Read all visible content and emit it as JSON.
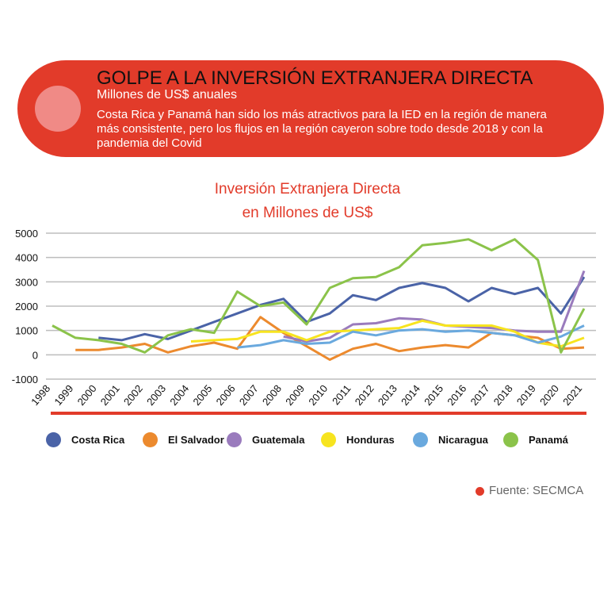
{
  "banner": {
    "title": "GOLPE A LA INVERSIÓN EXTRANJERA DIRECTA",
    "subtitle": "Millones de US$ anuales",
    "description": "Costa Rica y Panamá han sido los más atractivos para la IED en la región de manera más consistente, pero los flujos en la región cayeron sobre todo desde 2018 y con la pandemia del Covid",
    "color": "#e23b2a"
  },
  "chart_data": {
    "type": "line",
    "title_line1": "Inversión Extranjera Directa",
    "title_line2": "en Millones de US$",
    "xlabel": "",
    "ylabel": "",
    "ylim": [
      -1000,
      5000
    ],
    "yticks": [
      "5000",
      "4000",
      "3000",
      "2000",
      "1000",
      "0",
      "-1000"
    ],
    "ytick_values": [
      5000,
      4000,
      3000,
      2000,
      1000,
      0,
      -1000
    ],
    "grid": true,
    "legend_position": "bottom",
    "categories": [
      "1998",
      "1999",
      "2000",
      "2001",
      "2002",
      "2003",
      "2004",
      "2005",
      "2006",
      "2007",
      "2008",
      "2009",
      "2010",
      "2011",
      "2012",
      "2013",
      "2014",
      "2015",
      "2016",
      "2017",
      "2018",
      "2019",
      "2020",
      "2021"
    ],
    "series": [
      {
        "name": "Costa Rica",
        "color": "#4a63a7",
        "values": [
          null,
          null,
          700,
          600,
          850,
          650,
          1000,
          1350,
          1700,
          2050,
          2300,
          1350,
          1700,
          2450,
          2250,
          2750,
          2950,
          2750,
          2200,
          2750,
          2500,
          2750,
          1700,
          3200
        ]
      },
      {
        "name": "El Salvador",
        "color": "#ec8a2e",
        "values": [
          null,
          200,
          200,
          300,
          450,
          100,
          350,
          500,
          250,
          1550,
          900,
          350,
          -200,
          250,
          450,
          150,
          300,
          400,
          300,
          900,
          800,
          700,
          250,
          300
        ]
      },
      {
        "name": "Guatemala",
        "color": "#9a7bbd",
        "values": [
          null,
          null,
          null,
          null,
          null,
          null,
          null,
          null,
          null,
          null,
          750,
          550,
          700,
          1250,
          1300,
          1500,
          1450,
          1200,
          1150,
          1100,
          1000,
          950,
          950,
          3450
        ]
      },
      {
        "name": "Honduras",
        "color": "#f7e41f",
        "values": [
          null,
          null,
          null,
          null,
          null,
          null,
          550,
          600,
          650,
          950,
          950,
          600,
          950,
          1000,
          1050,
          1100,
          1400,
          1200,
          1200,
          1200,
          950,
          500,
          350,
          700
        ]
      },
      {
        "name": "Nicaragua",
        "color": "#6aa9de",
        "values": [
          null,
          null,
          null,
          null,
          null,
          null,
          null,
          null,
          300,
          400,
          600,
          450,
          500,
          950,
          800,
          1000,
          1050,
          950,
          1000,
          900,
          800,
          500,
          750,
          1200
        ]
      },
      {
        "name": "Panamá",
        "color": "#8bc34a",
        "values": [
          1200,
          700,
          600,
          450,
          100,
          800,
          1050,
          900,
          2600,
          2000,
          2150,
          1250,
          2750,
          3150,
          3200,
          3600,
          4500,
          4600,
          4750,
          4300,
          4750,
          3900,
          100,
          1900
        ]
      }
    ]
  },
  "source": {
    "label": "Fuente: SECMCA"
  }
}
